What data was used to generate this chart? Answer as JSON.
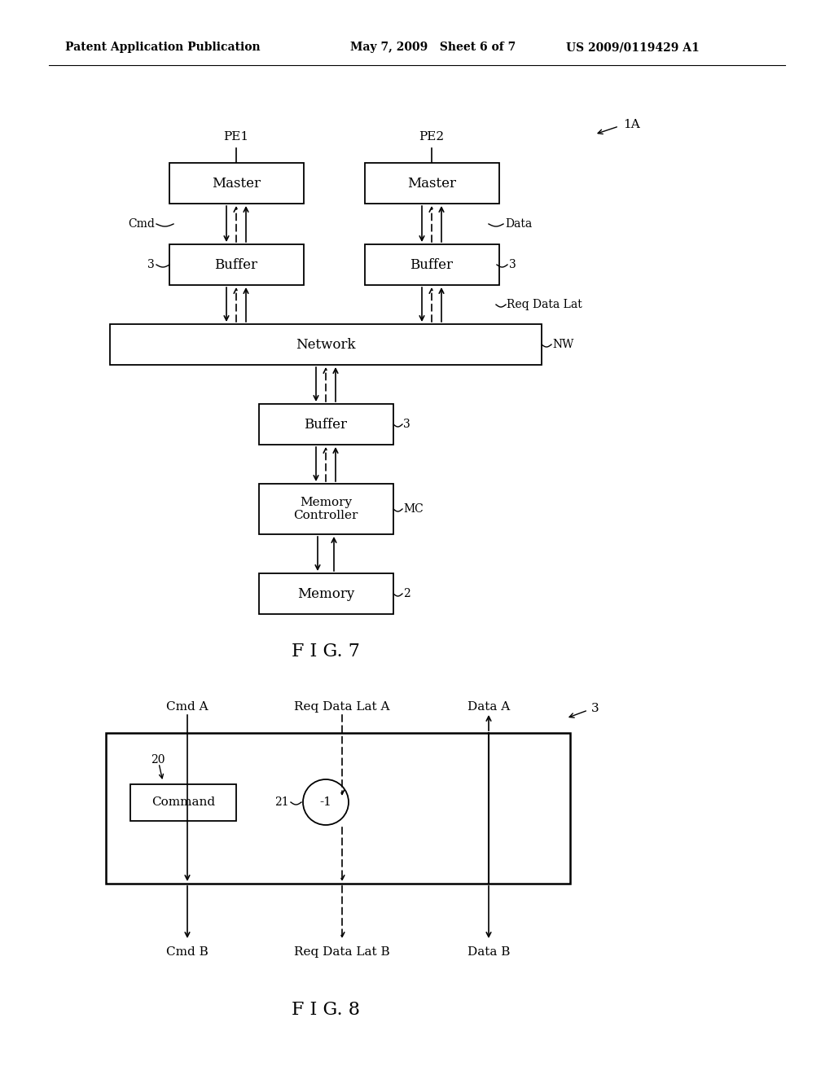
{
  "bg_color": "#ffffff",
  "header_left": "Patent Application Publication",
  "header_mid": "May 7, 2009   Sheet 6 of 7",
  "header_right": "US 2009/0119429 A1",
  "fig7_caption": "F I G. 7",
  "fig8_caption": "F I G. 8"
}
